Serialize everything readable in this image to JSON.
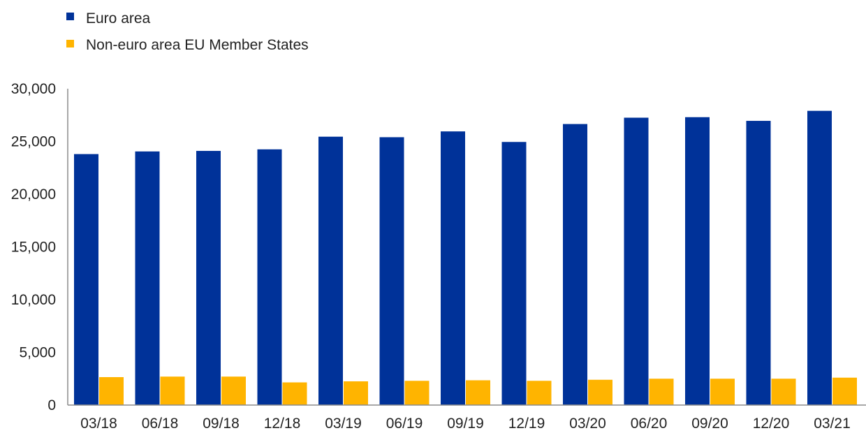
{
  "chart_data": {
    "type": "bar",
    "categories": [
      "03/18",
      "06/18",
      "09/18",
      "12/18",
      "03/19",
      "06/19",
      "09/19",
      "12/19",
      "03/20",
      "06/20",
      "09/20",
      "12/20",
      "03/21"
    ],
    "series": [
      {
        "name": "Euro area",
        "color": "#003299",
        "values": [
          23800,
          24050,
          24100,
          24250,
          25450,
          25400,
          25950,
          24950,
          26650,
          27250,
          27300,
          26950,
          27900
        ]
      },
      {
        "name": "Non-euro area EU Member States",
        "color": "#ffb400",
        "values": [
          2650,
          2700,
          2700,
          2150,
          2250,
          2300,
          2350,
          2300,
          2400,
          2500,
          2500,
          2500,
          2600
        ]
      }
    ],
    "ylim": [
      0,
      30000
    ],
    "yticks": [
      0,
      5000,
      10000,
      15000,
      20000,
      25000,
      30000
    ],
    "ytick_labels": [
      "0",
      "5,000",
      "10,000",
      "15,000",
      "20,000",
      "25,000",
      "30,000"
    ],
    "grid": false,
    "legend_position": "top-left"
  }
}
